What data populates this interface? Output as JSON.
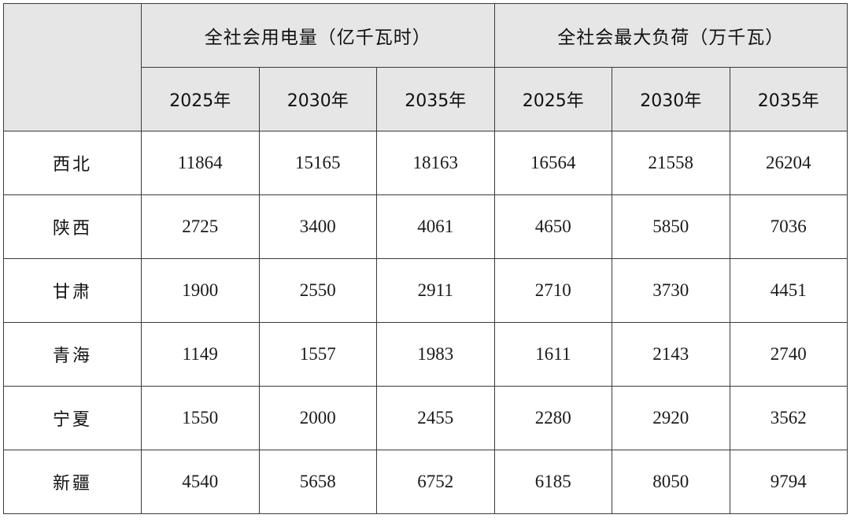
{
  "table": {
    "groups": [
      {
        "label": "全社会用电量（亿千瓦时）"
      },
      {
        "label": "全社会最大负荷（万千瓦）"
      }
    ],
    "years": [
      "2025年",
      "2030年",
      "2035年",
      "2025年",
      "2030年",
      "2035年"
    ],
    "rows": [
      {
        "region": "西北",
        "values": [
          "11864",
          "15165",
          "18163",
          "16564",
          "21558",
          "26204"
        ]
      },
      {
        "region": "陕西",
        "values": [
          "2725",
          "3400",
          "4061",
          "4650",
          "5850",
          "7036"
        ]
      },
      {
        "region": "甘肃",
        "values": [
          "1900",
          "2550",
          "2911",
          "2710",
          "3730",
          "4451"
        ]
      },
      {
        "region": "青海",
        "values": [
          "1149",
          "1557",
          "1983",
          "1611",
          "2143",
          "2740"
        ]
      },
      {
        "region": "宁夏",
        "values": [
          "1550",
          "2000",
          "2455",
          "2280",
          "2920",
          "3562"
        ]
      },
      {
        "region": "新疆",
        "values": [
          "4540",
          "5658",
          "6752",
          "6185",
          "8050",
          "9794"
        ]
      }
    ]
  }
}
